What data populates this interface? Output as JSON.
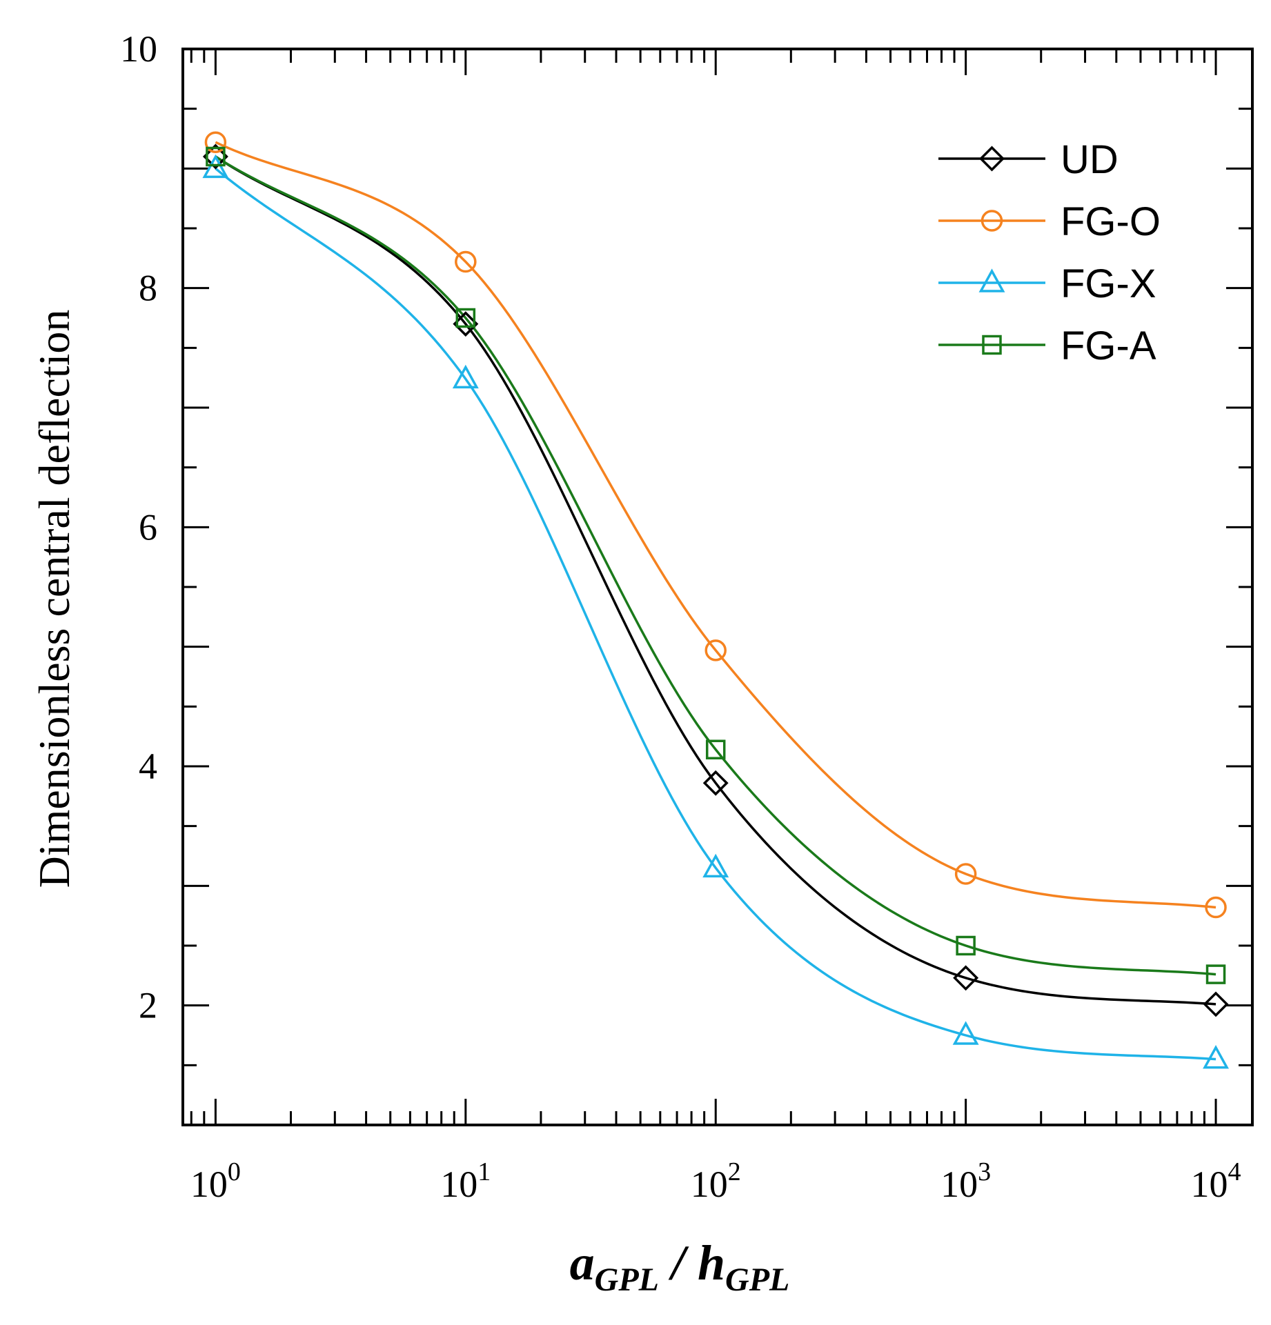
{
  "chart_data": {
    "type": "line",
    "title": "",
    "xlabel": {
      "base": "a",
      "sub": "GPL",
      "sep": " / ",
      "base2": "h",
      "sub2": "GPL"
    },
    "ylabel": "Dimensionless central deflection",
    "xscale": "log",
    "xlim": [
      0.74,
      14000
    ],
    "ylim": [
      1,
      10
    ],
    "xticks": [
      {
        "base": "10",
        "exp": "0"
      },
      {
        "base": "10",
        "exp": "1"
      },
      {
        "base": "10",
        "exp": "2"
      },
      {
        "base": "10",
        "exp": "3"
      },
      {
        "base": "10",
        "exp": "4"
      }
    ],
    "yticks": [
      "2",
      "4",
      "6",
      "8",
      "10"
    ],
    "legend_position": "top-right",
    "grid": false,
    "x": [
      1,
      10,
      100,
      1000,
      10000
    ],
    "series": [
      {
        "name": "UD",
        "color": "#000000",
        "marker": "diamond",
        "values": [
          9.1,
          7.7,
          3.86,
          2.23,
          2.01
        ]
      },
      {
        "name": "FG-O",
        "color": "#f5821f",
        "marker": "circle",
        "values": [
          9.22,
          8.22,
          4.97,
          3.1,
          2.82
        ]
      },
      {
        "name": "FG-X",
        "color": "#1fb3e8",
        "marker": "triangle",
        "values": [
          9.0,
          7.24,
          3.15,
          1.75,
          1.55
        ]
      },
      {
        "name": "FG-A",
        "color": "#1a7a1a",
        "marker": "square",
        "values": [
          9.1,
          7.75,
          4.14,
          2.5,
          2.26
        ]
      }
    ]
  }
}
